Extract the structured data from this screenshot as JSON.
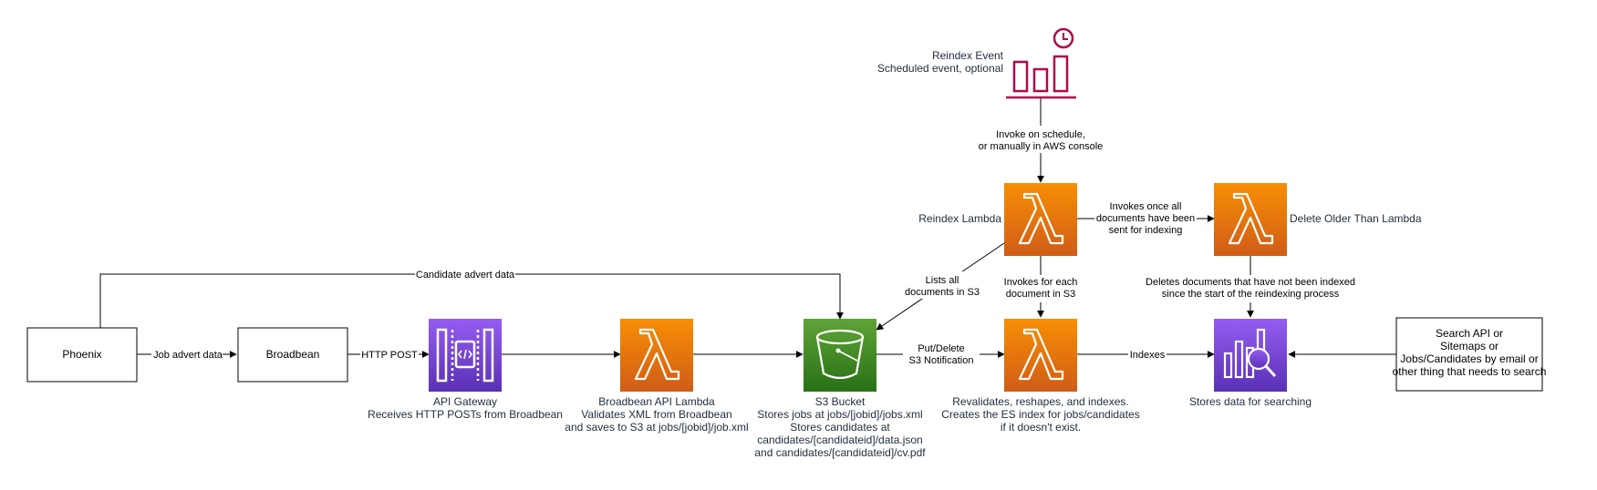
{
  "colors": {
    "lambda_top": "#f78e04",
    "lambda_bottom": "#d05c17",
    "apigw_top": "#945df2",
    "apigw_bottom": "#5a30b5",
    "s3_top": "#60a337",
    "s3_bottom": "#277116",
    "es_top": "#945df2",
    "es_bottom": "#5a30b5",
    "event_color": "#b0084d",
    "line": "#000000"
  },
  "nodes": {
    "phoenix": {
      "label": "Phoenix",
      "icon": "process-box"
    },
    "broadbean": {
      "label": "Broadbean",
      "icon": "process-box"
    },
    "api_gateway": {
      "icon": "api-gateway-icon",
      "lines": [
        "API Gateway",
        "Receives HTTP POSTs from Broadbean"
      ]
    },
    "broadbean_lambda": {
      "icon": "lambda-icon",
      "lines": [
        "Broadbean API Lambda",
        "Validates XML from Broadbean",
        "and saves to S3 at jobs/[jobid]/job.xml"
      ]
    },
    "s3_bucket": {
      "icon": "s3-bucket-icon",
      "lines": [
        "S3 Bucket",
        "Stores jobs at jobs/[jobid]/jobs.xml",
        "Stores candidates at",
        "candidates/[candidateid]/data.json",
        "and candidates/[candidateid]/cv.pdf"
      ]
    },
    "index_lambda": {
      "icon": "lambda-icon",
      "lines": [
        "Revalidates, reshapes, and indexes.",
        "Creates the ES index for jobs/candidates",
        "if it doesn't exist."
      ]
    },
    "elasticsearch": {
      "icon": "elasticsearch-icon",
      "lines": [
        "Stores data for searching"
      ]
    },
    "search_api": {
      "icon": "process-box",
      "lines": [
        "Search API or",
        "Sitemaps or",
        "Jobs/Candidates by email or",
        "other thing that needs to search"
      ]
    },
    "reindex_event": {
      "icon": "scheduled-event-icon",
      "lines": [
        "Reindex Event",
        "Scheduled event, optional"
      ]
    },
    "reindex_lambda": {
      "icon": "lambda-icon",
      "label": "Reindex Lambda"
    },
    "delete_lambda": {
      "icon": "lambda-icon",
      "label": "Delete Older Than Lambda"
    }
  },
  "edges": {
    "candidate_advert": {
      "lines": [
        "Candidate advert data"
      ]
    },
    "job_advert": {
      "lines": [
        "Job advert data"
      ]
    },
    "http_post": {
      "lines": [
        "HTTP POST"
      ]
    },
    "put_delete": {
      "lines": [
        "Put/Delete",
        "S3 Notification"
      ]
    },
    "indexes": {
      "lines": [
        "Indexes"
      ]
    },
    "invoke_schedule": {
      "lines": [
        "Invoke on schedule,",
        "or manually in AWS console"
      ]
    },
    "lists_all": {
      "lines": [
        "Lists all",
        "documents in S3"
      ]
    },
    "invokes_each": {
      "lines": [
        "Invokes for each",
        "document in S3"
      ]
    },
    "invokes_once": {
      "lines": [
        "Invokes once all",
        "documents have been",
        "sent for indexing"
      ]
    },
    "deletes_docs": {
      "lines": [
        "Deletes documents that have not been indexed",
        "since the start of the reindexing process"
      ]
    }
  }
}
